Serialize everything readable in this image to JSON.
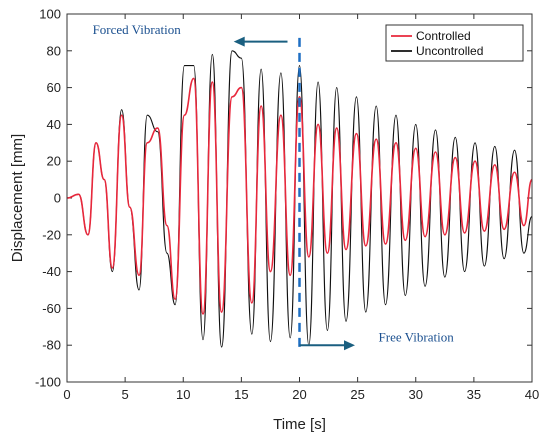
{
  "chart_data": {
    "type": "line",
    "title": "",
    "xlabel": "Time [s]",
    "ylabel": "Displacement [mm]",
    "xlim": [
      0,
      40
    ],
    "ylim": [
      -100,
      100
    ],
    "x_ticks": [
      0,
      5,
      10,
      15,
      20,
      25,
      30,
      35,
      40
    ],
    "y_ticks": [
      -100,
      -80,
      -60,
      -40,
      -20,
      0,
      20,
      40,
      60,
      80,
      100
    ],
    "grid": false,
    "legend_position": "top-right",
    "series": [
      {
        "name": "Controlled",
        "color": "#e8283c",
        "x": [
          0,
          1,
          1.8,
          2.5,
          3.2,
          3.9,
          4.7,
          5.4,
          6.2,
          6.9,
          7.8,
          8.6,
          9.3,
          10.1,
          10.9,
          11.7,
          12.5,
          13.3,
          14.2,
          15,
          15.9,
          16.7,
          17.5,
          18.4,
          19.2,
          20,
          20.8,
          21.6,
          22.4,
          23.2,
          24,
          24.9,
          25.7,
          26.6,
          27.4,
          28.3,
          29.1,
          30,
          30.8,
          31.7,
          32.5,
          33.4,
          34.2,
          35.1,
          35.9,
          36.8,
          37.6,
          38.5,
          39.3,
          40
        ],
        "y": [
          0,
          2,
          -20,
          30,
          10,
          -38,
          45,
          -5,
          -42,
          30,
          38,
          -15,
          -55,
          45,
          65,
          -63,
          63,
          -62,
          55,
          60,
          -57,
          50,
          -40,
          45,
          -42,
          55,
          -32,
          40,
          -30,
          38,
          -28,
          35,
          -26,
          32,
          -25,
          30,
          -23,
          27,
          -21,
          25,
          -20,
          22,
          -19,
          20,
          -18,
          18,
          -17,
          14,
          -15,
          10
        ]
      },
      {
        "name": "Uncontrolled",
        "color": "#111111",
        "x": [
          0,
          1,
          1.8,
          2.5,
          3.2,
          3.9,
          4.7,
          5.4,
          6.2,
          6.9,
          7.8,
          8.6,
          9.3,
          10.1,
          10.9,
          11.7,
          12.5,
          13.3,
          14.2,
          15,
          15.9,
          16.7,
          17.5,
          18.4,
          19.2,
          20,
          20.8,
          21.6,
          22.4,
          23.2,
          24,
          24.9,
          25.7,
          26.6,
          27.4,
          28.3,
          29.1,
          30,
          30.8,
          31.7,
          32.5,
          33.4,
          34.2,
          35.1,
          35.9,
          36.8,
          37.6,
          38.5,
          39.3,
          40
        ],
        "y": [
          0,
          2,
          -20,
          30,
          10,
          -40,
          48,
          -5,
          -50,
          45,
          36,
          -30,
          -58,
          72,
          72,
          -77,
          78,
          -81,
          80,
          76,
          -74,
          70,
          -78,
          68,
          -76,
          72,
          -80,
          63,
          -72,
          60,
          -67,
          55,
          -62,
          50,
          -58,
          45,
          -53,
          40,
          -48,
          37,
          -43,
          33,
          -40,
          30,
          -37,
          28,
          -33,
          26,
          -30,
          -10
        ]
      }
    ],
    "annotations": {
      "forced": "Forced Vibration",
      "free": "Free Vibration"
    }
  }
}
